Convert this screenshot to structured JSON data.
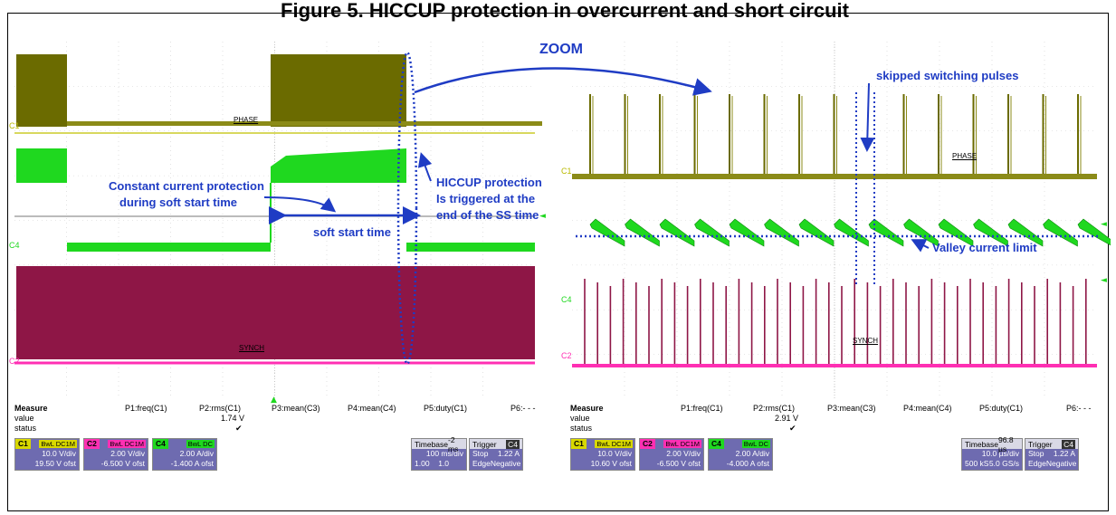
{
  "title": "Figure 5. HICCUP protection in overcurrent and short circuit",
  "scopes": [
    {
      "traces": {
        "phase": "PHASE",
        "synch": "SYNCH"
      },
      "channels": {
        "c1": "C1",
        "c4": "C4",
        "c2": "C2"
      },
      "measure": {
        "header": "Measure",
        "value": "value",
        "status": "status",
        "p": [
          "P1:freq(C1)",
          "P2:rms(C1)",
          "P3:mean(C3)",
          "P4:mean(C4)",
          "P5:duty(C1)",
          "P6:- - -"
        ],
        "p2_value": "1.74 V",
        "check": "✔"
      },
      "chboxes": [
        {
          "id": "C1",
          "badge": "BwL DC1M",
          "l1": "10.0 V/div",
          "l2": "19.50 V ofst"
        },
        {
          "id": "C2",
          "badge": "BwL DC1M",
          "l1": "2.00 V/div",
          "l2": "-6.500 V ofst"
        },
        {
          "id": "C4",
          "badge": "BwL DC",
          "l1": "2.00 A/div",
          "l2": "-1.400 A ofst"
        }
      ],
      "timebase": {
        "label": "Timebase",
        "tb_val": "-2 ms",
        "l1a": "",
        "l1b": "100 ms/div",
        "l2a": "1.00 MS",
        "l2b": "1.0 MS/s"
      },
      "trigger": {
        "label": "Trigger",
        "ch": "C4",
        "l1a": "Stop",
        "l1b": "1.22 A",
        "l2a": "Edge",
        "l2b": "Negative"
      }
    },
    {
      "traces": {
        "phase": "PHASE",
        "synch": "SYNCH"
      },
      "channels": {
        "c1": "C1",
        "c4": "C4",
        "c2": "C2"
      },
      "measure": {
        "header": "Measure",
        "value": "value",
        "status": "status",
        "p": [
          "P1:freq(C1)",
          "P2:rms(C1)",
          "P3:mean(C3)",
          "P4:mean(C4)",
          "P5:duty(C1)",
          "P6:- - -"
        ],
        "p2_value": "2.91 V",
        "check": "✔"
      },
      "chboxes": [
        {
          "id": "C1",
          "badge": "BwL DC1M",
          "l1": "10.0 V/div",
          "l2": "10.60 V ofst"
        },
        {
          "id": "C2",
          "badge": "BwL DC1M",
          "l1": "2.00 V/div",
          "l2": "-6.500 V ofst"
        },
        {
          "id": "C4",
          "badge": "BwL DC",
          "l1": "2.00 A/div",
          "l2": "-4.000 A ofst"
        }
      ],
      "timebase": {
        "label": "Timebase",
        "tb_val": "96.8 µs",
        "l1a": "",
        "l1b": "10.0 µs/div",
        "l2a": "500 kS",
        "l2b": "5.0 GS/s"
      },
      "trigger": {
        "label": "Trigger",
        "ch": "C4",
        "l1a": "Stop",
        "l1b": "1.22 A",
        "l2a": "Edge",
        "l2b": "Negative"
      }
    }
  ],
  "annotations": {
    "zoom": "ZOOM",
    "skipped": "skipped switching pulses",
    "cc1": "Constant current protection",
    "cc2": "during soft start time",
    "hiccup1": "HICCUP protection",
    "hiccup2": "Is triggered at the",
    "hiccup3": "end of the SS time",
    "softstart": "soft start time",
    "valley": "Valley current limit"
  },
  "colors": {
    "phase": "#6b6b00",
    "current": "#1fd81f",
    "synch": "#8e1646",
    "pink": "#ff2fb3",
    "anno": "#1f3cc4",
    "box": "#6e6bb0"
  }
}
